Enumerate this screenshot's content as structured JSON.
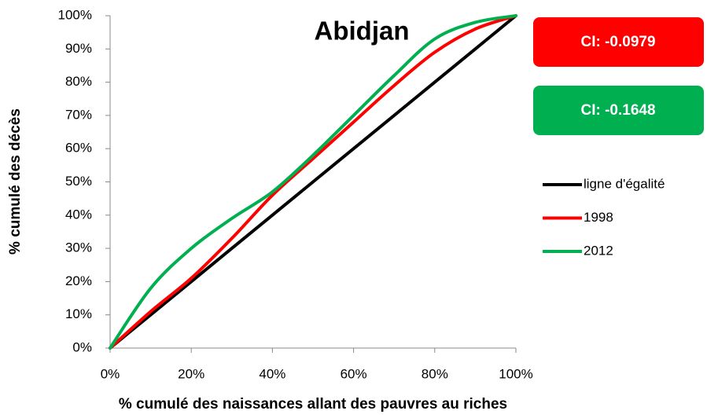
{
  "chart_data": {
    "type": "line",
    "title": "Abidjan",
    "x_label": "% cumulé des naissances allant des pauvres au riches",
    "y_label": "% cumulé des décès",
    "x": [
      0,
      10,
      20,
      30,
      40,
      50,
      60,
      70,
      80,
      90,
      100
    ],
    "series": [
      {
        "name": "ligne d'égalité",
        "color": "#000000",
        "values": [
          0,
          10,
          20,
          30,
          40,
          50,
          60,
          70,
          80,
          90,
          100
        ]
      },
      {
        "name": "1998",
        "color": "#ff0000",
        "values": [
          0,
          11,
          21,
          33,
          46,
          57,
          68,
          79,
          89,
          96,
          100
        ]
      },
      {
        "name": "2012",
        "color": "#00b050",
        "values": [
          0,
          18,
          30,
          39,
          47,
          58,
          70,
          82,
          93,
          98,
          100
        ]
      }
    ],
    "annotations": [
      {
        "text": "CI: -0.0979",
        "color": "#ff0000"
      },
      {
        "text": "CI: -0.1648",
        "color": "#00b050"
      }
    ],
    "xlim": [
      0,
      100
    ],
    "ylim": [
      0,
      100
    ],
    "xticks": [
      {
        "value": 0,
        "label": "0%"
      },
      {
        "value": 20,
        "label": "20%"
      },
      {
        "value": 40,
        "label": "40%"
      },
      {
        "value": 60,
        "label": "60%"
      },
      {
        "value": 80,
        "label": "80%"
      },
      {
        "value": 100,
        "label": "100%"
      }
    ],
    "yticks": [
      {
        "value": 0,
        "label": "0%"
      },
      {
        "value": 10,
        "label": "10%"
      },
      {
        "value": 20,
        "label": "20%"
      },
      {
        "value": 30,
        "label": "30%"
      },
      {
        "value": 40,
        "label": "40%"
      },
      {
        "value": 50,
        "label": "50%"
      },
      {
        "value": 60,
        "label": "60%"
      },
      {
        "value": 70,
        "label": "70%"
      },
      {
        "value": 80,
        "label": "80%"
      },
      {
        "value": 90,
        "label": "90%"
      },
      {
        "value": 100,
        "label": "100%"
      }
    ],
    "legend": "right"
  }
}
